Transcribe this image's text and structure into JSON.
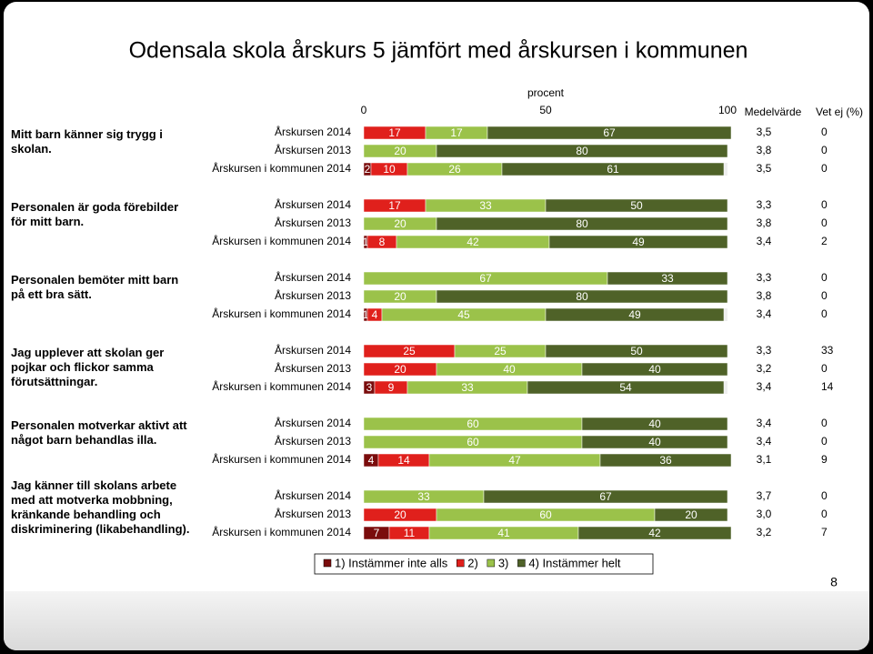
{
  "chart_data": {
    "type": "bar",
    "orientation": "horizontal",
    "stacked": true,
    "title": "Odensala skola årskurs 5 jämfört med årskursen i kommunen",
    "xlabel": "procent",
    "xlim": [
      0,
      100
    ],
    "xticks": [
      0,
      50,
      100
    ],
    "questions": [
      "Mitt barn känner sig trygg i skolan.",
      "Personalen är goda förebilder för mitt barn.",
      "Personalen bemöter mitt barn på ett bra sätt.",
      "Jag upplever att skolan ger pojkar och flickor samma förutsättningar.",
      "Personalen motverkar aktivt att något barn behandlas illa.",
      "Jag känner till skolans arbete med att motverka mobbning, kränkande behandling och diskriminering (likabehandling)."
    ],
    "categories": [
      "Årskursen 2014",
      "Årskursen 2013",
      "Årskursen i kommunen 2014",
      "Årskursen 2014",
      "Årskursen 2013",
      "Årskursen i kommunen 2014",
      "Årskursen 2014",
      "Årskursen 2013",
      "Årskursen i kommunen 2014",
      "Årskursen 2014",
      "Årskursen 2013",
      "Årskursen i kommunen 2014",
      "Årskursen 2014",
      "Årskursen 2013",
      "Årskursen i kommunen 2014",
      "Årskursen 2014",
      "Årskursen 2013",
      "Årskursen i kommunen 2014"
    ],
    "series": [
      {
        "name": "1) Instämmer inte alls",
        "color": "#7a0c0c",
        "values": [
          0,
          0,
          2,
          0,
          0,
          1,
          0,
          0,
          1,
          0,
          0,
          3,
          0,
          0,
          4,
          0,
          0,
          7
        ]
      },
      {
        "name": "2)",
        "color": "#e0201c",
        "values": [
          17,
          0,
          10,
          17,
          0,
          8,
          0,
          0,
          4,
          25,
          20,
          9,
          0,
          0,
          14,
          0,
          20,
          11
        ]
      },
      {
        "name": "3)",
        "color": "#9bc24a",
        "values": [
          17,
          20,
          26,
          33,
          20,
          42,
          67,
          20,
          45,
          25,
          40,
          33,
          60,
          60,
          47,
          33,
          60,
          41
        ]
      },
      {
        "name": "4) Instämmer helt",
        "color": "#4f6228",
        "values": [
          67,
          80,
          61,
          50,
          80,
          49,
          33,
          80,
          49,
          50,
          40,
          54,
          40,
          40,
          36,
          67,
          20,
          42
        ]
      }
    ],
    "mean": {
      "title": "Medelvärde",
      "values": [
        3.5,
        3.8,
        3.5,
        3.3,
        3.8,
        3.4,
        3.3,
        3.8,
        3.4,
        3.3,
        3.2,
        3.4,
        3.4,
        3.4,
        3.1,
        3.7,
        3.0,
        3.2
      ],
      "value_labels": [
        "3,5",
        "3,8",
        "3,5",
        "3,3",
        "3,8",
        "3,4",
        "3,3",
        "3,8",
        "3,4",
        "3,3",
        "3,2",
        "3,4",
        "3,4",
        "3,4",
        "3,1",
        "3,7",
        "3,0",
        "3,2"
      ]
    },
    "dont_know": {
      "title": "Vet ej (%)",
      "values": [
        0,
        0,
        0,
        0,
        0,
        2,
        0,
        0,
        0,
        33,
        0,
        14,
        0,
        0,
        9,
        0,
        0,
        7
      ]
    },
    "page_number": "8"
  }
}
